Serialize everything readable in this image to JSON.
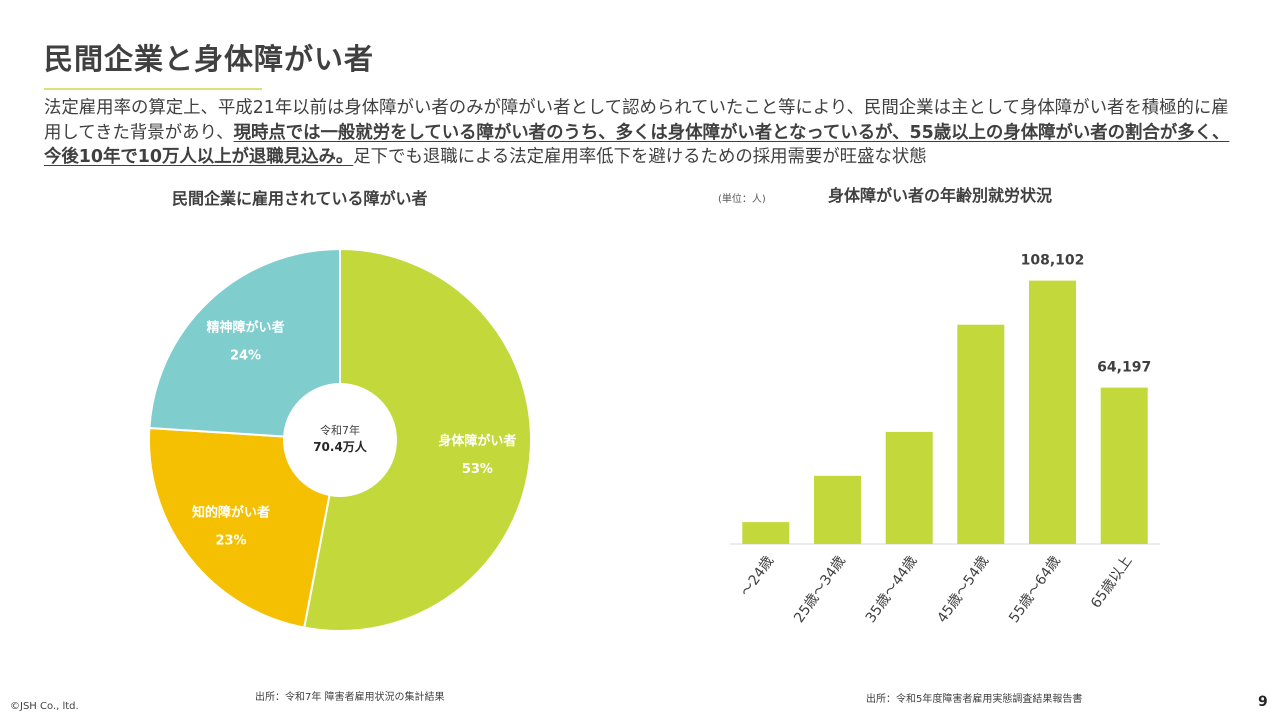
{
  "page": {
    "title": "民間企業と身体障がい者",
    "intro": {
      "before": "法定雇用率の算定上、平成21年以前は身体障がい者のみが障がい者として認められていたこと等により、民間企業は主として身体障がい者を積極的に雇用してきた背景があり、",
      "emphasis": "現時点では一般就労をしている障がい者のうち、多くは身体障がい者となっているが、55歳以上の身体障がい者の割合が多く、今後10年で10万人以上が退職見込み。",
      "after": "足下でも退職による法定雇用率低下を避けるための採用需要が旺盛な状態"
    },
    "copyright": "©JSH Co., ltd.",
    "page_number": "9"
  },
  "colors": {
    "physical": "#c3d93b",
    "intellectual": "#f6c002",
    "mental": "#80cdce",
    "bar": "#c3d93b",
    "title_rule": "#d9e27a"
  },
  "chart_data": [
    {
      "type": "pie",
      "title": "民間企業に雇用されている障がい者",
      "center_label": {
        "line1": "令和7年",
        "line2": "70.4万人"
      },
      "slices": [
        {
          "label": "身体障がい者",
          "value": 53,
          "display": "53%",
          "color": "#c3d93b"
        },
        {
          "label": "知的障がい者",
          "value": 23,
          "display": "23%",
          "color": "#f6c002"
        },
        {
          "label": "精神障がい者",
          "value": 24,
          "display": "24%",
          "color": "#80cdce"
        }
      ],
      "source": "出所：令和7年 障害者雇用状況の集計結果"
    },
    {
      "type": "bar",
      "title": "身体障がい者の年齢別就労状況",
      "unit": "(単位：人)",
      "categories": [
        "～24歳",
        "25歳～34歳",
        "35歳～44歳",
        "45歳～54歳",
        "55歳～64歳",
        "65歳以上"
      ],
      "values": [
        9000,
        28000,
        46000,
        90000,
        108102,
        64197
      ],
      "data_labels": [
        "",
        "",
        "",
        "",
        "108,102",
        "64,197"
      ],
      "ylim": [
        0,
        110000
      ],
      "grid": false,
      "source": "出所：令和5年度障害者雇用実態調査結果報告書"
    }
  ]
}
